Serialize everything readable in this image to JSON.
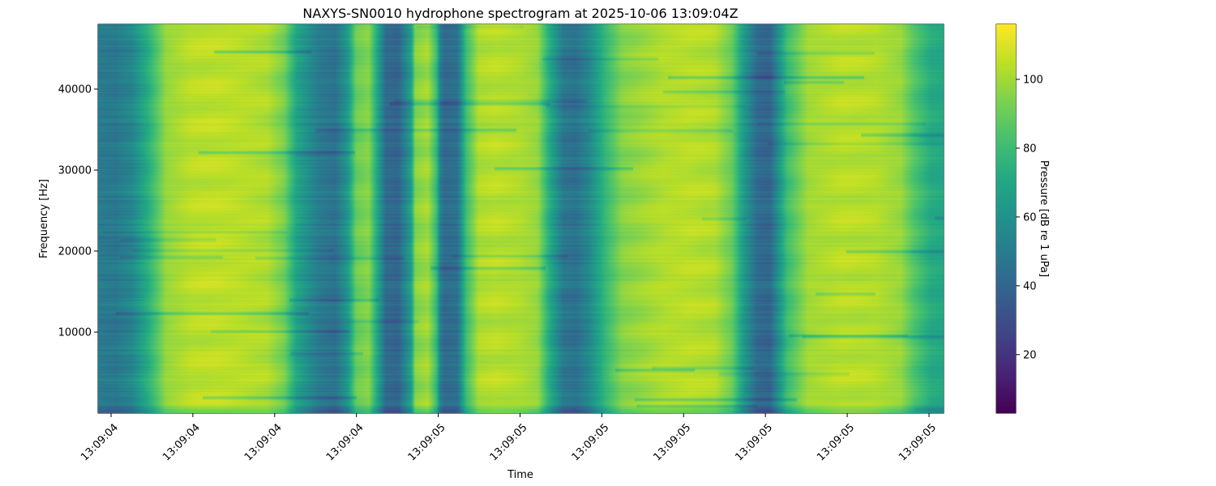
{
  "chart_data": {
    "type": "heatmap",
    "title": "NAXYS-SN0010 hydrophone spectrogram at 2025-10-06 13:09:04Z",
    "xlabel": "Time",
    "ylabel": "Frequency [Hz]",
    "ylim": [
      0,
      48000
    ],
    "y_ticks": [
      10000,
      20000,
      30000,
      40000
    ],
    "y_tick_labels": [
      "10000",
      "20000",
      "30000",
      "40000"
    ],
    "x_tick_labels": [
      "13:09:04",
      "13:09:04",
      "13:09:04",
      "13:09:04",
      "13:09:05",
      "13:09:05",
      "13:09:05",
      "13:09:05",
      "13:09:05",
      "13:09:05",
      "13:09:05"
    ],
    "colormap": "viridis",
    "colorbar": {
      "label": "Pressure [dB re 1 uPa]",
      "range": [
        3,
        116
      ],
      "ticks": [
        20,
        40,
        60,
        80,
        100
      ],
      "tick_labels": [
        "20",
        "40",
        "60",
        "80",
        "100"
      ]
    },
    "time_columns": [
      {
        "t": 0.0,
        "db": 50
      },
      {
        "t": 0.02,
        "db": 48
      },
      {
        "t": 0.04,
        "db": 55
      },
      {
        "t": 0.06,
        "db": 75
      },
      {
        "t": 0.08,
        "db": 98
      },
      {
        "t": 0.11,
        "db": 104
      },
      {
        "t": 0.14,
        "db": 105
      },
      {
        "t": 0.17,
        "db": 104
      },
      {
        "t": 0.2,
        "db": 102
      },
      {
        "t": 0.22,
        "db": 92
      },
      {
        "t": 0.235,
        "db": 68
      },
      {
        "t": 0.26,
        "db": 50
      },
      {
        "t": 0.28,
        "db": 45
      },
      {
        "t": 0.295,
        "db": 62
      },
      {
        "t": 0.305,
        "db": 90
      },
      {
        "t": 0.32,
        "db": 95
      },
      {
        "t": 0.33,
        "db": 70
      },
      {
        "t": 0.34,
        "db": 42
      },
      {
        "t": 0.355,
        "db": 40
      },
      {
        "t": 0.37,
        "db": 65
      },
      {
        "t": 0.375,
        "db": 95
      },
      {
        "t": 0.39,
        "db": 100
      },
      {
        "t": 0.4,
        "db": 80
      },
      {
        "t": 0.405,
        "db": 50
      },
      {
        "t": 0.41,
        "db": 42
      },
      {
        "t": 0.425,
        "db": 45
      },
      {
        "t": 0.435,
        "db": 80
      },
      {
        "t": 0.45,
        "db": 102
      },
      {
        "t": 0.47,
        "db": 104
      },
      {
        "t": 0.5,
        "db": 102
      },
      {
        "t": 0.52,
        "db": 98
      },
      {
        "t": 0.535,
        "db": 70
      },
      {
        "t": 0.55,
        "db": 48
      },
      {
        "t": 0.565,
        "db": 45
      },
      {
        "t": 0.58,
        "db": 55
      },
      {
        "t": 0.6,
        "db": 78
      },
      {
        "t": 0.62,
        "db": 95
      },
      {
        "t": 0.65,
        "db": 100
      },
      {
        "t": 0.67,
        "db": 103
      },
      {
        "t": 0.7,
        "db": 104
      },
      {
        "t": 0.73,
        "db": 102
      },
      {
        "t": 0.75,
        "db": 90
      },
      {
        "t": 0.765,
        "db": 62
      },
      {
        "t": 0.78,
        "db": 42
      },
      {
        "t": 0.795,
        "db": 40
      },
      {
        "t": 0.8,
        "db": 50
      },
      {
        "t": 0.815,
        "db": 80
      },
      {
        "t": 0.84,
        "db": 100
      },
      {
        "t": 0.88,
        "db": 104
      },
      {
        "t": 0.92,
        "db": 103
      },
      {
        "t": 0.95,
        "db": 98
      },
      {
        "t": 0.965,
        "db": 85
      },
      {
        "t": 0.985,
        "db": 72
      },
      {
        "t": 1.0,
        "db": 70
      }
    ]
  }
}
